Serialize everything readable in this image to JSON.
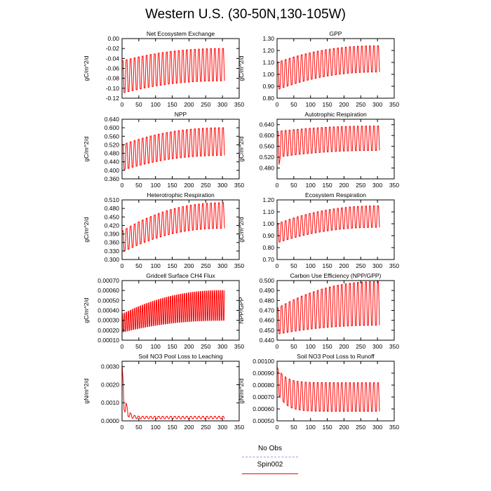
{
  "title": "Western U.S. (30-50N,130-105W)",
  "colors": {
    "spin": "#ff0000",
    "obs": "#9999ff"
  },
  "legend": {
    "obs_label": "No Obs",
    "spin_label": "Spin002"
  },
  "chart_data": [
    {
      "type": "line",
      "title": "Net Ecosystem Exchange",
      "ylabel": "gC/m^2/d",
      "xlim": [
        0,
        350
      ],
      "ylim": [
        -0.12,
        0.0
      ],
      "xticks": [
        0,
        50,
        100,
        150,
        200,
        250,
        300,
        350
      ],
      "yticks": [
        0.0,
        -0.02,
        -0.04,
        -0.06,
        -0.08,
        -0.1,
        -0.12
      ],
      "ytick_labels": [
        "0.00",
        "-0.02",
        "-0.04",
        "-0.06",
        "-0.08",
        "-0.10",
        "-0.12"
      ],
      "series": [
        {
          "name": "Spin002",
          "x_range": [
            0,
            306
          ],
          "period": 6,
          "start_high": -0.045,
          "start_low": -0.11,
          "end_high": -0.02,
          "end_low": -0.085
        }
      ]
    },
    {
      "type": "line",
      "title": "GPP",
      "ylabel": "gC/m^2/d",
      "xlim": [
        0,
        350
      ],
      "ylim": [
        0.8,
        1.3
      ],
      "xticks": [
        0,
        50,
        100,
        150,
        200,
        250,
        300,
        350
      ],
      "yticks": [
        0.8,
        0.9,
        1.0,
        1.1,
        1.2,
        1.3
      ],
      "ytick_labels": [
        "0.80",
        "0.90",
        "1.00",
        "1.10",
        "1.20",
        "1.30"
      ],
      "series": [
        {
          "name": "Spin002",
          "x_range": [
            0,
            306
          ],
          "period": 6,
          "start_high": 1.1,
          "start_low": 0.87,
          "end_high": 1.24,
          "end_low": 1.02
        }
      ]
    },
    {
      "type": "line",
      "title": "NPP",
      "ylabel": "gC/m^2/d",
      "xlim": [
        0,
        350
      ],
      "ylim": [
        0.36,
        0.64
      ],
      "xticks": [
        0,
        50,
        100,
        150,
        200,
        250,
        300,
        350
      ],
      "yticks": [
        0.36,
        0.4,
        0.44,
        0.48,
        0.52,
        0.56,
        0.6,
        0.64
      ],
      "ytick_labels": [
        "0.360",
        "0.400",
        "0.440",
        "0.480",
        "0.520",
        "0.560",
        "0.600",
        "0.640"
      ],
      "series": [
        {
          "name": "Spin002",
          "x_range": [
            0,
            306
          ],
          "period": 6,
          "start_high": 0.52,
          "start_low": 0.4,
          "end_high": 0.6,
          "end_low": 0.47
        }
      ]
    },
    {
      "type": "line",
      "title": "Autotrophic Respiration",
      "ylabel": "gC/m^2/d",
      "xlim": [
        0,
        350
      ],
      "ylim": [
        0.44,
        0.66
      ],
      "xticks": [
        0,
        50,
        100,
        150,
        200,
        250,
        300,
        350
      ],
      "yticks": [
        0.48,
        0.52,
        0.56,
        0.6,
        0.64
      ],
      "ytick_labels": [
        "0.480",
        "0.520",
        "0.560",
        "0.600",
        "0.640"
      ],
      "series": [
        {
          "name": "Spin002",
          "x_range": [
            0,
            306
          ],
          "period": 6,
          "start_high": 0.615,
          "start_low": 0.52,
          "end_high": 0.635,
          "end_low": 0.545,
          "initial_low": 0.45
        }
      ]
    },
    {
      "type": "line",
      "title": "Heterotrophic Respiration",
      "ylabel": "gC/m^2/d",
      "xlim": [
        0,
        350
      ],
      "ylim": [
        0.3,
        0.51
      ],
      "xticks": [
        0,
        50,
        100,
        150,
        200,
        250,
        300,
        350
      ],
      "yticks": [
        0.3,
        0.33,
        0.36,
        0.39,
        0.42,
        0.45,
        0.48,
        0.51
      ],
      "ytick_labels": [
        "0.300",
        "0.330",
        "0.360",
        "0.390",
        "0.420",
        "0.450",
        "0.480",
        "0.510"
      ],
      "series": [
        {
          "name": "Spin002",
          "x_range": [
            0,
            306
          ],
          "period": 6,
          "start_high": 0.4,
          "start_low": 0.325,
          "end_high": 0.5,
          "end_low": 0.41
        }
      ]
    },
    {
      "type": "line",
      "title": "Ecosystem Respiration",
      "ylabel": "gC/m^2/d",
      "xlim": [
        0,
        350
      ],
      "ylim": [
        0.7,
        1.2
      ],
      "xticks": [
        0,
        50,
        100,
        150,
        200,
        250,
        300,
        350
      ],
      "yticks": [
        0.7,
        0.8,
        0.9,
        1.0,
        1.1,
        1.2
      ],
      "ytick_labels": [
        "0.70",
        "0.80",
        "0.90",
        "1.00",
        "1.10",
        "1.20"
      ],
      "series": [
        {
          "name": "Spin002",
          "x_range": [
            0,
            306
          ],
          "period": 6,
          "start_high": 1.0,
          "start_low": 0.84,
          "end_high": 1.15,
          "end_low": 0.97
        }
      ]
    },
    {
      "type": "line",
      "title": "Gridcell Surface CH4 Flux",
      "ylabel": "gC/m^2/d",
      "xlim": [
        0,
        350
      ],
      "ylim": [
        0.0001,
        0.0007
      ],
      "xticks": [
        0,
        50,
        100,
        150,
        200,
        250,
        300,
        350
      ],
      "yticks": [
        0.0001,
        0.0002,
        0.0003,
        0.0004,
        0.0005,
        0.0006,
        0.0007
      ],
      "ytick_labels": [
        "0.00010",
        "0.00020",
        "0.00030",
        "0.00040",
        "0.00050",
        "0.00060",
        "0.00070"
      ],
      "series": [
        {
          "name": "Spin002",
          "x_range": [
            0,
            306
          ],
          "period": 3,
          "start_high": 0.00036,
          "start_low": 0.00018,
          "end_high": 0.0006,
          "end_low": 0.0003
        }
      ]
    },
    {
      "type": "line",
      "title": "Carbon Use Efficiency (NPP/GPP)",
      "ylabel": "NPP/GPP",
      "xlim": [
        0,
        350
      ],
      "ylim": [
        0.44,
        0.5
      ],
      "xticks": [
        0,
        50,
        100,
        150,
        200,
        250,
        300,
        350
      ],
      "yticks": [
        0.44,
        0.45,
        0.46,
        0.47,
        0.48,
        0.49,
        0.5
      ],
      "ytick_labels": [
        "0.440",
        "0.450",
        "0.460",
        "0.470",
        "0.480",
        "0.490",
        "0.500"
      ],
      "series": [
        {
          "name": "Spin002",
          "x_range": [
            0,
            306
          ],
          "period": 6,
          "start_high": 0.472,
          "start_low": 0.446,
          "end_high": 0.499,
          "end_low": 0.455
        }
      ]
    },
    {
      "type": "line",
      "title": "Soil NO3 Pool Loss to Leaching",
      "ylabel": "gN/m^2/d",
      "xlim": [
        0,
        350
      ],
      "ylim": [
        0.0,
        0.0033
      ],
      "xticks": [
        0,
        50,
        100,
        150,
        200,
        250,
        300,
        350
      ],
      "yticks": [
        0.0,
        0.001,
        0.002,
        0.003
      ],
      "ytick_labels": [
        "0.0000",
        "0.0010",
        "0.0020",
        "0.0030"
      ],
      "series": [
        {
          "name": "Spin002",
          "x_range": [
            0,
            306
          ],
          "period": 6,
          "peak": 0.0031,
          "steady_high": 0.00025,
          "steady_low": 0.00012
        }
      ]
    },
    {
      "type": "line",
      "title": "Soil NO3 Pool Loss to Runoff",
      "ylabel": "gN/m^2/d",
      "xlim": [
        0,
        350
      ],
      "ylim": [
        0.0005,
        0.001
      ],
      "xticks": [
        0,
        50,
        100,
        150,
        200,
        250,
        300,
        350
      ],
      "yticks": [
        0.0005,
        0.0006,
        0.0007,
        0.0008,
        0.0009,
        0.001
      ],
      "ytick_labels": [
        "0.00050",
        "0.00060",
        "0.00070",
        "0.00080",
        "0.00090",
        "0.00100"
      ],
      "series": [
        {
          "name": "Spin002",
          "x_range": [
            0,
            306
          ],
          "period": 6,
          "start_high": 0.00095,
          "start_low": 0.00075,
          "steady_high": 0.00082,
          "steady_low": 0.00058
        }
      ]
    }
  ]
}
